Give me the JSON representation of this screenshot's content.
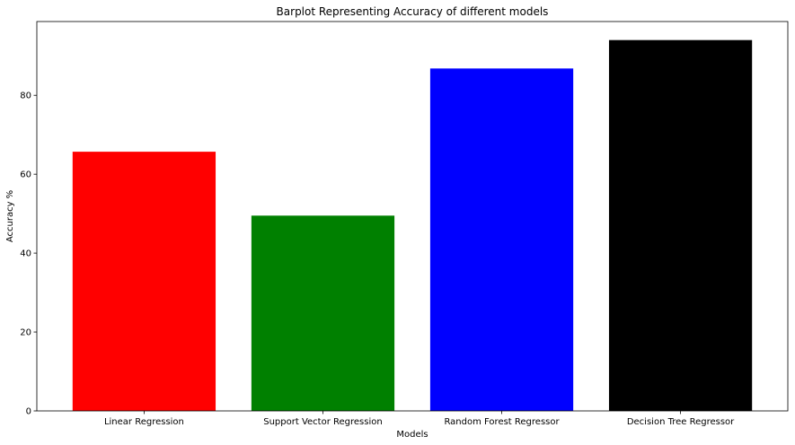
{
  "chart_data": {
    "type": "bar",
    "title": "Barplot Representing Accuracy of different models",
    "xlabel": "Models",
    "ylabel": "Accuracy %",
    "categories": [
      "Linear Regression",
      "Support Vector Regression",
      "Random Forest Regressor",
      "Decision Tree Regressor"
    ],
    "values": [
      65.7,
      49.5,
      86.8,
      94.0
    ],
    "colors": [
      "#ff0000",
      "#008000",
      "#0000ff",
      "#000000"
    ],
    "ylim": [
      0,
      98.7
    ],
    "yticks": [
      0,
      20,
      40,
      60,
      80
    ],
    "grid": false,
    "legend": false
  }
}
